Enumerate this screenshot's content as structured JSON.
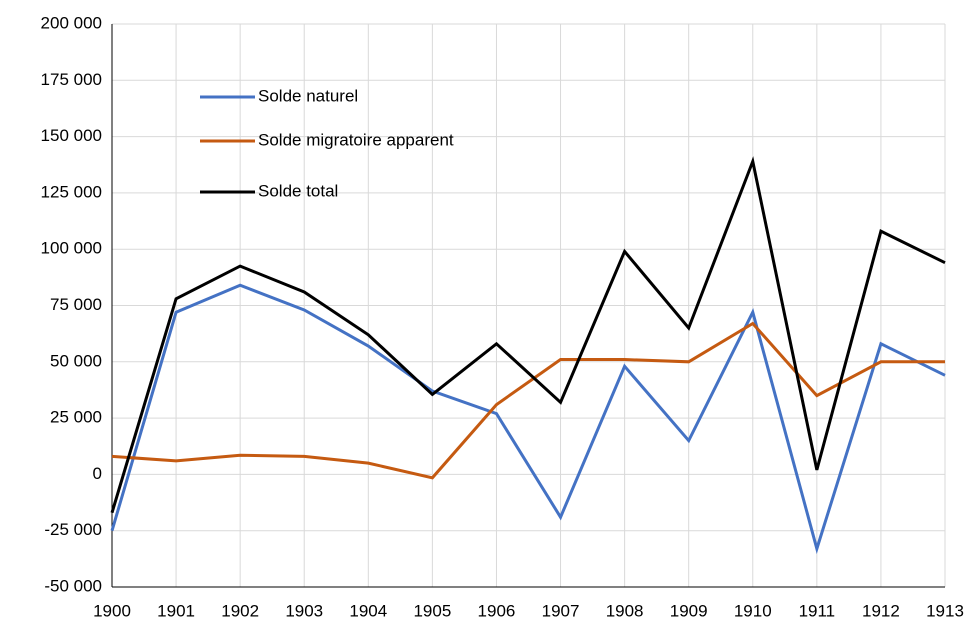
{
  "chart_data": {
    "type": "line",
    "x": [
      1900,
      1901,
      1902,
      1903,
      1904,
      1905,
      1906,
      1907,
      1908,
      1909,
      1910,
      1911,
      1912,
      1913
    ],
    "series": [
      {
        "name": "Solde naturel",
        "color": "#4472c4",
        "values": [
          -25000,
          72000,
          84000,
          73000,
          57000,
          37000,
          27000,
          -19000,
          48000,
          15000,
          72000,
          -33000,
          58000,
          44000
        ]
      },
      {
        "name": "Solde migratoire apparent",
        "color": "#c55a11",
        "values": [
          8000,
          6000,
          8500,
          8000,
          5000,
          -1500,
          31000,
          51000,
          51000,
          50000,
          67000,
          35000,
          50000,
          50000
        ]
      },
      {
        "name": "Solde total",
        "color": "#000000",
        "values": [
          -17000,
          78000,
          92500,
          81000,
          62000,
          35500,
          58000,
          32000,
          99000,
          65000,
          139000,
          2000,
          108000,
          94000
        ]
      }
    ],
    "xlim": [
      1900,
      1913
    ],
    "xticks": [
      1900,
      1901,
      1902,
      1903,
      1904,
      1905,
      1906,
      1907,
      1908,
      1909,
      1910,
      1911,
      1912,
      1913
    ],
    "ylim": [
      -50000,
      200000
    ],
    "yticks": [
      {
        "value": -50000,
        "label": "-50 000"
      },
      {
        "value": -25000,
        "label": "-25 000"
      },
      0,
      {
        "value": 25000,
        "label": "25 000"
      },
      {
        "value": 50000,
        "label": "50 000"
      },
      {
        "value": 75000,
        "label": "75 000"
      },
      {
        "value": 100000,
        "label": "100 000"
      },
      {
        "value": 125000,
        "label": "125 000"
      },
      {
        "value": 150000,
        "label": "150 000"
      },
      {
        "value": 175000,
        "label": "175 000"
      },
      {
        "value": 200000,
        "label": "200 000"
      }
    ],
    "grid": true,
    "legend": "upper left"
  }
}
